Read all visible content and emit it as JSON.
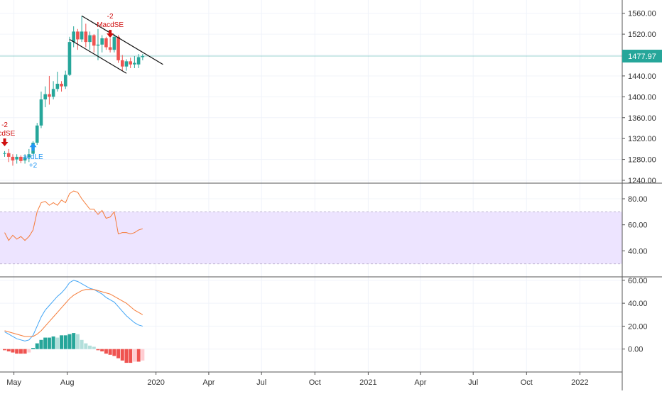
{
  "chart_data": [
    {
      "type": "candlestick",
      "panel": "price",
      "ylim": [
        1240,
        1580
      ],
      "y_ticks": [
        "1560.00",
        "1520.00",
        "1480.00",
        "1440.00",
        "1400.00",
        "1360.00",
        "1320.00",
        "1280.00",
        "1240.00"
      ],
      "last_price": "1477.97",
      "last_price_value": 1477.97,
      "candles": [
        {
          "t": "2019-04-15",
          "o": 1291,
          "h": 1296,
          "l": 1285,
          "c": 1292
        },
        {
          "t": "2019-04-22",
          "o": 1292,
          "h": 1300,
          "l": 1275,
          "c": 1285
        },
        {
          "t": "2019-04-29",
          "o": 1285,
          "h": 1290,
          "l": 1268,
          "c": 1278
        },
        {
          "t": "2019-05-06",
          "o": 1280,
          "h": 1290,
          "l": 1272,
          "c": 1285
        },
        {
          "t": "2019-05-13",
          "o": 1285,
          "h": 1288,
          "l": 1273,
          "c": 1277
        },
        {
          "t": "2019-05-20",
          "o": 1278,
          "h": 1290,
          "l": 1272,
          "c": 1284
        },
        {
          "t": "2019-05-27",
          "o": 1284,
          "h": 1300,
          "l": 1275,
          "c": 1290
        },
        {
          "t": "2019-06-03",
          "o": 1291,
          "h": 1315,
          "l": 1290,
          "c": 1312
        },
        {
          "t": "2019-06-10",
          "o": 1312,
          "h": 1350,
          "l": 1308,
          "c": 1345
        },
        {
          "t": "2019-06-17",
          "o": 1345,
          "h": 1410,
          "l": 1340,
          "c": 1395
        },
        {
          "t": "2019-06-24",
          "o": 1395,
          "h": 1420,
          "l": 1380,
          "c": 1405
        },
        {
          "t": "2019-07-01",
          "o": 1405,
          "h": 1440,
          "l": 1385,
          "c": 1400
        },
        {
          "t": "2019-07-08",
          "o": 1400,
          "h": 1430,
          "l": 1395,
          "c": 1415
        },
        {
          "t": "2019-07-15",
          "o": 1415,
          "h": 1448,
          "l": 1410,
          "c": 1425
        },
        {
          "t": "2019-07-22",
          "o": 1425,
          "h": 1430,
          "l": 1410,
          "c": 1420
        },
        {
          "t": "2019-07-29",
          "o": 1420,
          "h": 1450,
          "l": 1415,
          "c": 1442
        },
        {
          "t": "2019-08-05",
          "o": 1442,
          "h": 1515,
          "l": 1440,
          "c": 1505
        },
        {
          "t": "2019-08-12",
          "o": 1505,
          "h": 1535,
          "l": 1495,
          "c": 1525
        },
        {
          "t": "2019-08-19",
          "o": 1525,
          "h": 1530,
          "l": 1490,
          "c": 1510
        },
        {
          "t": "2019-08-26",
          "o": 1510,
          "h": 1555,
          "l": 1505,
          "c": 1525
        },
        {
          "t": "2019-09-02",
          "o": 1525,
          "h": 1540,
          "l": 1495,
          "c": 1505
        },
        {
          "t": "2019-09-09",
          "o": 1505,
          "h": 1525,
          "l": 1490,
          "c": 1518
        },
        {
          "t": "2019-09-16",
          "o": 1518,
          "h": 1520,
          "l": 1485,
          "c": 1498
        },
        {
          "t": "2019-09-23",
          "o": 1498,
          "h": 1530,
          "l": 1470,
          "c": 1500
        },
        {
          "t": "2019-09-30",
          "o": 1500,
          "h": 1518,
          "l": 1485,
          "c": 1512
        },
        {
          "t": "2019-10-07",
          "o": 1512,
          "h": 1515,
          "l": 1490,
          "c": 1495
        },
        {
          "t": "2019-10-14",
          "o": 1495,
          "h": 1512,
          "l": 1485,
          "c": 1490
        },
        {
          "t": "2019-10-21",
          "o": 1490,
          "h": 1520,
          "l": 1485,
          "c": 1515
        },
        {
          "t": "2019-10-28",
          "o": 1515,
          "h": 1518,
          "l": 1465,
          "c": 1470
        },
        {
          "t": "2019-11-04",
          "o": 1470,
          "h": 1480,
          "l": 1450,
          "c": 1458
        },
        {
          "t": "2019-11-11",
          "o": 1458,
          "h": 1472,
          "l": 1450,
          "c": 1468
        },
        {
          "t": "2019-11-18",
          "o": 1468,
          "h": 1475,
          "l": 1455,
          "c": 1462
        },
        {
          "t": "2019-11-25",
          "o": 1462,
          "h": 1478,
          "l": 1455,
          "c": 1465
        },
        {
          "t": "2019-12-02",
          "o": 1462,
          "h": 1482,
          "l": 1455,
          "c": 1476
        },
        {
          "t": "2019-12-09",
          "o": 1476,
          "h": 1482,
          "l": 1470,
          "c": 1478
        }
      ],
      "channel_lines": [
        {
          "from": [
            "2019-08-26",
            1555
          ],
          "to": [
            "2020-01-13",
            1462
          ]
        },
        {
          "from": [
            "2019-08-05",
            1510
          ],
          "to": [
            "2019-11-11",
            1445
          ]
        }
      ],
      "signals": [
        {
          "kind": "sell",
          "x": "2019-04-15",
          "y": 1312,
          "text_top": "-2",
          "text_bottom": "acdSE",
          "color": "#d01010"
        },
        {
          "kind": "buy",
          "x": "2019-06-03",
          "y": 1305,
          "text_top": "acdLE",
          "text_bottom": "+2",
          "color": "#2196f3"
        },
        {
          "kind": "sell",
          "x": "2019-10-14",
          "y": 1520,
          "text_top": "-2",
          "text_bottom": "MacdSE",
          "color": "#d01010"
        }
      ]
    },
    {
      "type": "line",
      "panel": "rsi",
      "ylim": [
        20,
        92
      ],
      "y_ticks": [
        "80.00",
        "60.00",
        "40.00"
      ],
      "band": [
        30,
        70
      ],
      "x": [
        "2019-04-15",
        "2019-04-22",
        "2019-04-29",
        "2019-05-06",
        "2019-05-13",
        "2019-05-20",
        "2019-05-27",
        "2019-06-03",
        "2019-06-10",
        "2019-06-17",
        "2019-06-24",
        "2019-07-01",
        "2019-07-08",
        "2019-07-15",
        "2019-07-22",
        "2019-07-29",
        "2019-08-05",
        "2019-08-12",
        "2019-08-19",
        "2019-08-26",
        "2019-09-02",
        "2019-09-09",
        "2019-09-16",
        "2019-09-23",
        "2019-09-30",
        "2019-10-07",
        "2019-10-14",
        "2019-10-21",
        "2019-10-28",
        "2019-11-04",
        "2019-11-11",
        "2019-11-18",
        "2019-11-25",
        "2019-12-02",
        "2019-12-09"
      ],
      "series": [
        {
          "values": [
            54,
            48,
            52,
            49,
            51,
            48,
            51,
            56,
            70,
            77,
            78,
            75,
            77,
            75,
            79,
            77,
            84,
            86,
            85,
            80,
            76,
            72,
            72,
            68,
            71,
            65,
            66,
            70,
            53,
            54,
            54,
            53,
            54,
            56,
            57
          ],
          "color": "#f57c3a"
        }
      ]
    },
    {
      "type": "macd",
      "panel": "macd",
      "ylim": [
        -20,
        63
      ],
      "y_ticks": [
        "60.00",
        "40.00",
        "20.00",
        "0.00"
      ],
      "x": [
        "2019-04-15",
        "2019-04-22",
        "2019-04-29",
        "2019-05-06",
        "2019-05-13",
        "2019-05-20",
        "2019-05-27",
        "2019-06-03",
        "2019-06-10",
        "2019-06-17",
        "2019-06-24",
        "2019-07-01",
        "2019-07-08",
        "2019-07-15",
        "2019-07-22",
        "2019-07-29",
        "2019-08-05",
        "2019-08-12",
        "2019-08-19",
        "2019-08-26",
        "2019-09-02",
        "2019-09-09",
        "2019-09-16",
        "2019-09-23",
        "2019-09-30",
        "2019-10-07",
        "2019-10-14",
        "2019-10-21",
        "2019-10-28",
        "2019-11-04",
        "2019-11-11",
        "2019-11-18",
        "2019-11-25",
        "2019-12-02",
        "2019-12-09"
      ],
      "series": [
        {
          "values": [
            15,
            13,
            11,
            9,
            8,
            7,
            8,
            12,
            20,
            28,
            34,
            38,
            42,
            46,
            49,
            53,
            58,
            60,
            59,
            57,
            55,
            53,
            52,
            50,
            48,
            45,
            43,
            41,
            37,
            33,
            29,
            26,
            23,
            21,
            20
          ],
          "color": "#42a5f5"
        },
        {
          "values": [
            16,
            15,
            14,
            13,
            12,
            11,
            11,
            11,
            13,
            16,
            20,
            24,
            28,
            32,
            36,
            40,
            44,
            47,
            49,
            51,
            52,
            52,
            52,
            51,
            50,
            49,
            48,
            46,
            44,
            42,
            40,
            37,
            34,
            32,
            30
          ],
          "color": "#f57c3a"
        }
      ],
      "histogram": [
        -1,
        -2,
        -3,
        -4,
        -4,
        -4,
        -3,
        1,
        5,
        8,
        10,
        10,
        11,
        10,
        12,
        12,
        13,
        14,
        13,
        8,
        5,
        3,
        2,
        -1,
        -2,
        -4,
        -5,
        -6,
        -8,
        -10,
        -12,
        -12,
        -11,
        -11,
        -10
      ]
    }
  ],
  "x_axis": {
    "labels": [
      "May",
      "Aug",
      "2020",
      "Apr",
      "Jul",
      "Oct",
      "2021",
      "Apr",
      "Jul",
      "Oct",
      "2022"
    ],
    "dates": [
      "2019-05-01",
      "2019-08-01",
      "2020-01-01",
      "2020-04-01",
      "2020-07-01",
      "2020-10-01",
      "2021-01-01",
      "2021-04-01",
      "2021-07-01",
      "2021-10-01",
      "2022-01-01"
    ],
    "range": [
      "2019-04-07",
      "2022-03-15"
    ]
  },
  "colors": {
    "up": "#26a69a",
    "down": "#ef5350",
    "rsi_band": "#ede4ff",
    "price_line": "#26a69a",
    "grid": "#f0f3fa",
    "axis_text": "#333333"
  }
}
